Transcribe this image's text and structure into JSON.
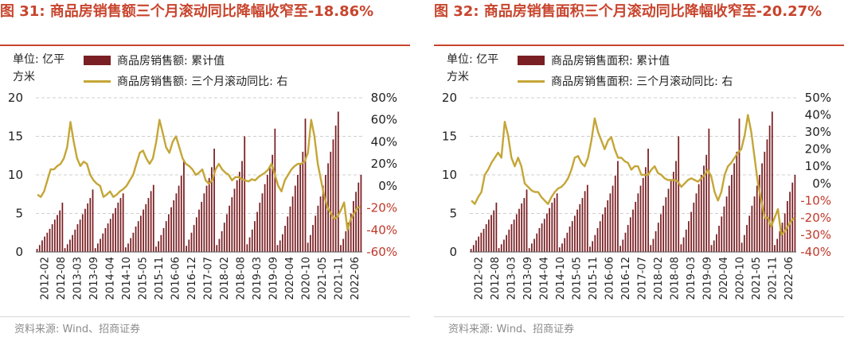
{
  "left": {
    "title": "图 31:  商品房销售额三个月滚动同比降幅收窄至-18.86%",
    "unit": "单位: 亿平方米",
    "legend_bar": "商品房销售额: 累计值",
    "legend_line": "商品房销售额: 三个月滚动同比: 右",
    "source": "资料来源: Wind、招商证券"
  },
  "right": {
    "title": "图 32:  商品房销售面积三个月滚动同比降幅收窄至-20.27%",
    "unit": "单位: 亿平方米",
    "legend_bar": "商品房销售面积: 累计值",
    "legend_line": "商品房销售面积: 三个月滚动同比: 右",
    "source": "资料来源: Wind、招商证券"
  },
  "colors": {
    "bar": "#7a1f23",
    "line": "#c4a637",
    "title": "#c8452e",
    "negative_tick": "#c0392b"
  },
  "chart_data": [
    {
      "type": "bar+line",
      "title": "图 31:  商品房销售额三个月滚动同比降幅收窄至-18.86%",
      "x_ticks": [
        "2012-02",
        "2012-08",
        "2013-03",
        "2013-09",
        "2014-04",
        "2014-10",
        "2015-05",
        "2015-11",
        "2016-06",
        "2016-12",
        "2017-07",
        "2018-02",
        "2018-08",
        "2019-03",
        "2019-09",
        "2020-04",
        "2020-10",
        "2021-05",
        "2021-11",
        "2022-06"
      ],
      "y_left": {
        "ticks": [
          "0",
          "5",
          "10",
          "15",
          "20"
        ],
        "range": [
          0,
          20
        ]
      },
      "y_right": {
        "ticks": [
          "80%",
          "60%",
          "40%",
          "20%",
          "0%",
          "-20%",
          "-40%",
          "-60%"
        ],
        "range": [
          -60,
          80
        ]
      },
      "series": [
        {
          "name": "商品房销售额: 累计值",
          "type": "bar",
          "values": [
            0.4,
            0.9,
            1.5,
            2.0,
            2.5,
            3.0,
            3.6,
            4.2,
            4.8,
            5.4,
            6.4,
            0.5,
            1.0,
            1.6,
            2.2,
            2.9,
            3.6,
            4.2,
            4.9,
            5.6,
            6.3,
            7.0,
            8.1,
            0.5,
            1.1,
            1.7,
            2.4,
            3.1,
            3.7,
            4.3,
            5.0,
            5.7,
            6.4,
            7.0,
            7.6,
            0.6,
            1.1,
            1.8,
            2.5,
            3.3,
            4.0,
            4.7,
            5.5,
            6.2,
            7.0,
            7.9,
            8.7,
            0.7,
            1.4,
            2.2,
            3.1,
            4.0,
            4.9,
            5.8,
            6.7,
            7.6,
            8.6,
            9.9,
            11.8,
            0.8,
            1.6,
            2.5,
            3.5,
            4.5,
            5.5,
            6.5,
            7.6,
            8.6,
            9.6,
            11.0,
            13.4,
            0.9,
            1.7,
            2.7,
            3.8,
            4.9,
            6.0,
            7.1,
            8.2,
            9.3,
            10.4,
            11.8,
            15.0,
            1.0,
            1.9,
            2.9,
            4.0,
            5.2,
            6.4,
            7.6,
            8.8,
            10.0,
            11.2,
            12.6,
            16.0,
            0.9,
            1.5,
            2.3,
            3.4,
            4.6,
            5.9,
            7.2,
            8.6,
            10.0,
            11.5,
            13.0,
            17.3,
            1.2,
            2.2,
            3.5,
            4.7,
            6.0,
            7.2,
            8.6,
            10.0,
            11.5,
            13.0,
            14.6,
            16.4,
            18.2,
            0.9,
            1.7,
            2.7,
            3.8,
            5.0,
            6.6,
            7.8,
            9.0,
            10.0
          ]
        },
        {
          "name": "商品房销售额: 三个月滚动同比: 右",
          "type": "line",
          "values": [
            -8,
            -10,
            -5,
            5,
            15,
            15,
            18,
            20,
            25,
            35,
            58,
            40,
            25,
            18,
            22,
            20,
            10,
            5,
            2,
            0,
            -10,
            -8,
            -5,
            -10,
            -8,
            -5,
            -3,
            0,
            5,
            10,
            20,
            30,
            32,
            25,
            20,
            25,
            40,
            60,
            48,
            35,
            30,
            40,
            45,
            35,
            25,
            20,
            18,
            15,
            10,
            12,
            15,
            5,
            2,
            5,
            15,
            20,
            15,
            12,
            10,
            5,
            8,
            8,
            6,
            5,
            4,
            6,
            5,
            8,
            10,
            12,
            15,
            20,
            10,
            0,
            -5,
            5,
            10,
            15,
            18,
            20,
            20,
            22,
            30,
            60,
            45,
            20,
            5,
            -10,
            -20,
            -25,
            -30,
            -28,
            -22,
            -15,
            -40,
            -30,
            -25,
            -20,
            -19
          ]
        }
      ]
    },
    {
      "type": "bar+line",
      "title": "图 32:  商品房销售面积三个月滚动同比降幅收窄至-20.27%",
      "x_ticks": [
        "2012-02",
        "2012-08",
        "2013-03",
        "2013-09",
        "2014-04",
        "2014-10",
        "2015-05",
        "2015-11",
        "2016-06",
        "2016-12",
        "2017-07",
        "2018-02",
        "2018-08",
        "2019-03",
        "2019-09",
        "2020-04",
        "2020-10",
        "2021-05",
        "2021-11",
        "2022-06"
      ],
      "y_left": {
        "ticks": [
          "0",
          "5",
          "10",
          "15",
          "20"
        ],
        "range": [
          0,
          20
        ]
      },
      "y_right": {
        "ticks": [
          "50%",
          "40%",
          "30%",
          "20%",
          "10%",
          "0%",
          "-10%",
          "-20%",
          "-30%",
          "-40%"
        ],
        "range": [
          -40,
          50
        ]
      },
      "series": [
        {
          "name": "商品房销售面积: 累计值",
          "type": "bar",
          "values": [
            0.4,
            0.9,
            1.5,
            2.0,
            2.5,
            3.0,
            3.6,
            4.2,
            4.8,
            5.4,
            6.4,
            0.5,
            1.0,
            1.6,
            2.2,
            2.9,
            3.6,
            4.2,
            4.9,
            5.6,
            6.3,
            7.0,
            8.1,
            0.5,
            1.1,
            1.7,
            2.4,
            3.1,
            3.7,
            4.3,
            5.0,
            5.7,
            6.4,
            7.0,
            7.6,
            0.6,
            1.1,
            1.8,
            2.5,
            3.3,
            4.0,
            4.7,
            5.5,
            6.2,
            7.0,
            7.9,
            8.7,
            0.7,
            1.4,
            2.2,
            3.1,
            4.0,
            4.9,
            5.8,
            6.7,
            7.6,
            8.6,
            9.9,
            11.8,
            0.8,
            1.6,
            2.5,
            3.5,
            4.5,
            5.5,
            6.5,
            7.6,
            8.6,
            9.6,
            11.0,
            13.4,
            0.9,
            1.7,
            2.7,
            3.8,
            4.9,
            6.0,
            7.1,
            8.2,
            9.3,
            10.4,
            11.8,
            15.0,
            1.0,
            1.9,
            2.9,
            4.0,
            5.2,
            6.4,
            7.6,
            8.8,
            10.0,
            11.2,
            12.6,
            16.0,
            0.9,
            1.5,
            2.3,
            3.4,
            4.6,
            5.9,
            7.2,
            8.6,
            10.0,
            11.5,
            13.0,
            17.3,
            1.2,
            2.2,
            3.5,
            4.7,
            6.0,
            7.2,
            8.6,
            10.0,
            11.5,
            13.0,
            14.6,
            16.4,
            18.2,
            0.9,
            1.7,
            2.7,
            3.8,
            5.0,
            6.6,
            7.8,
            9.0,
            10.0
          ]
        },
        {
          "name": "商品房销售面积: 三个月滚动同比: 右",
          "type": "line",
          "values": [
            -10,
            -12,
            -8,
            -5,
            5,
            8,
            12,
            15,
            18,
            15,
            36,
            28,
            15,
            10,
            15,
            10,
            0,
            -2,
            -4,
            -5,
            -5,
            -8,
            -10,
            -12,
            -8,
            -5,
            -3,
            -2,
            0,
            3,
            8,
            15,
            16,
            12,
            10,
            15,
            25,
            38,
            30,
            25,
            20,
            25,
            27,
            20,
            15,
            15,
            13,
            12,
            8,
            10,
            10,
            5,
            5,
            5,
            8,
            10,
            6,
            5,
            3,
            2,
            2,
            2,
            1,
            -2,
            0,
            2,
            3,
            2,
            1,
            3,
            5,
            8,
            4,
            -5,
            -10,
            -5,
            5,
            10,
            12,
            15,
            18,
            20,
            28,
            40,
            30,
            15,
            0,
            -10,
            -20,
            -20,
            -25,
            -20,
            -15,
            -30,
            -28,
            -25,
            -22,
            -20
          ]
        }
      ]
    }
  ]
}
